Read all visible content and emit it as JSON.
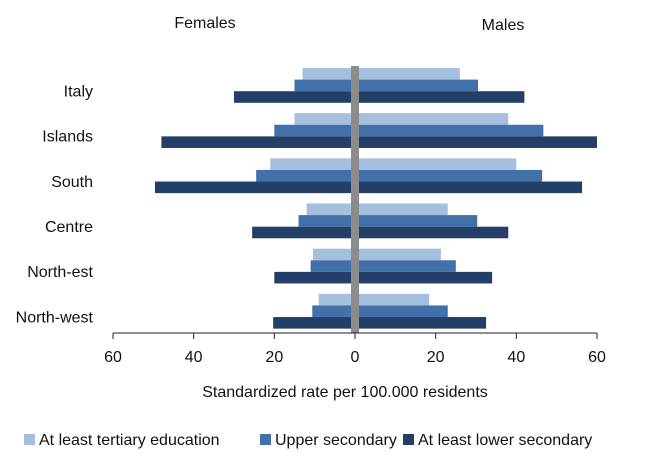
{
  "chart_data": {
    "type": "butterfly",
    "left_title": "Females",
    "right_title": "Males",
    "xlabel": "Standardized rate per 100.000 residents",
    "categories": [
      "Italy",
      "Islands",
      "South",
      "Centre",
      "North-est",
      "North-west"
    ],
    "series": [
      {
        "name": "At least tertiary education",
        "color": "#a7bfdf",
        "females": [
          13,
          15,
          21,
          12,
          10.4,
          9
        ],
        "males": [
          26,
          38,
          40,
          23,
          21.3,
          18.4
        ]
      },
      {
        "name": "Upper secondary",
        "color": "#4271aa",
        "females": [
          15,
          20,
          24.5,
          14,
          11,
          10.6
        ],
        "males": [
          30.5,
          46.7,
          46.4,
          30.3,
          25,
          23
        ]
      },
      {
        "name": "At least lower secondary",
        "color": "#233f68",
        "females": [
          30,
          48,
          49.6,
          25.5,
          20,
          20.3
        ],
        "males": [
          42,
          60,
          56.3,
          38,
          34,
          32.5
        ]
      }
    ],
    "xlim": [
      -60,
      60
    ],
    "xticks": [
      {
        "value": -60,
        "label": "60"
      },
      {
        "value": -40,
        "label": "40"
      },
      {
        "value": -20,
        "label": "20"
      },
      0,
      20,
      40,
      60
    ],
    "legend": "bottom"
  }
}
